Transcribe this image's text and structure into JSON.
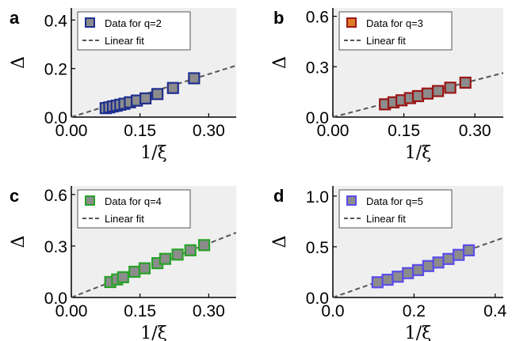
{
  "colors": {
    "background": "#ffffff",
    "plot_bg": "#efefef",
    "marker_face": "#8c8c8c",
    "fit_line": "#555555",
    "edge_q2": "#1f2f8f",
    "edge_q3": "#9b1515",
    "edge_q4": "#28a228",
    "edge_q5": "#5a4de8",
    "legend_q3_fill": "#e07b28"
  },
  "chart_data": [
    {
      "type": "scatter",
      "panel": "a",
      "xlabel": "1/ξ",
      "ylabel": "Δ",
      "xlim": [
        0,
        0.36
      ],
      "ylim": [
        0,
        0.45
      ],
      "xticks": [
        "0.00",
        "0.15",
        "0.30"
      ],
      "yticks": [
        "0.0",
        "0.2",
        "0.4"
      ],
      "xtick_values": [
        0,
        0.15,
        0.3
      ],
      "ytick_values": [
        0,
        0.2,
        0.4
      ],
      "grid": false,
      "legend_position": "top-left",
      "edge_color": "#1f2f8f",
      "legend_marker_fill": "#8c8c8c",
      "series": [
        {
          "name": "Data for q=2",
          "kind": "markers",
          "x": [
            0.075,
            0.083,
            0.091,
            0.099,
            0.107,
            0.116,
            0.128,
            0.143,
            0.162,
            0.188,
            0.222,
            0.268
          ],
          "y": [
            0.037,
            0.04,
            0.044,
            0.047,
            0.051,
            0.055,
            0.061,
            0.068,
            0.077,
            0.095,
            0.12,
            0.16
          ]
        },
        {
          "name": "Linear fit",
          "kind": "dashed-line",
          "slope": 0.59,
          "intercept": 0,
          "x_range": [
            0,
            0.36
          ]
        }
      ]
    },
    {
      "type": "scatter",
      "panel": "b",
      "xlabel": "1/ξ",
      "ylabel": "Δ",
      "xlim": [
        0,
        0.36
      ],
      "ylim": [
        0,
        0.65
      ],
      "xticks": [
        "0.00",
        "0.15",
        "0.30"
      ],
      "yticks": [
        "0.0",
        "0.3",
        "0.6"
      ],
      "xtick_values": [
        0,
        0.15,
        0.3
      ],
      "ytick_values": [
        0,
        0.3,
        0.6
      ],
      "grid": false,
      "legend_position": "top-left",
      "edge_color": "#9b1515",
      "legend_marker_fill": "#e07b28",
      "series": [
        {
          "name": "Data for q=3",
          "kind": "markers",
          "x": [
            0.11,
            0.128,
            0.145,
            0.163,
            0.18,
            0.2,
            0.222,
            0.248,
            0.28
          ],
          "y": [
            0.076,
            0.088,
            0.1,
            0.113,
            0.125,
            0.14,
            0.155,
            0.175,
            0.205
          ]
        },
        {
          "name": "Linear fit",
          "kind": "dashed-line",
          "slope": 0.73,
          "intercept": 0,
          "x_range": [
            0,
            0.36
          ]
        }
      ]
    },
    {
      "type": "scatter",
      "panel": "c",
      "xlabel": "1/ξ",
      "ylabel": "Δ",
      "xlim": [
        0,
        0.36
      ],
      "ylim": [
        0,
        0.65
      ],
      "xticks": [
        "0.00",
        "0.15",
        "0.30"
      ],
      "yticks": [
        "0.0",
        "0.3",
        "0.6"
      ],
      "xtick_values": [
        0,
        0.15,
        0.3
      ],
      "ytick_values": [
        0,
        0.3,
        0.6
      ],
      "grid": false,
      "legend_position": "top-left",
      "edge_color": "#28a228",
      "legend_marker_fill": "#8c8c8c",
      "series": [
        {
          "name": "Data for q=4",
          "kind": "markers",
          "x": [
            0.085,
            0.1,
            0.113,
            0.138,
            0.16,
            0.188,
            0.205,
            0.232,
            0.26,
            0.29
          ],
          "y": [
            0.09,
            0.105,
            0.118,
            0.15,
            0.17,
            0.2,
            0.225,
            0.25,
            0.275,
            0.305
          ]
        },
        {
          "name": "Linear fit",
          "kind": "dashed-line",
          "slope": 1.05,
          "intercept": 0,
          "x_range": [
            0,
            0.36
          ]
        }
      ]
    },
    {
      "type": "scatter",
      "panel": "d",
      "xlabel": "1/ξ",
      "ylabel": "Δ",
      "xlim": [
        0,
        0.42
      ],
      "ylim": [
        0,
        1.1
      ],
      "xticks": [
        "0.0",
        "0.2",
        "0.4"
      ],
      "yticks": [
        "0.0",
        "0.5",
        "1.0"
      ],
      "xtick_values": [
        0,
        0.2,
        0.4
      ],
      "ytick_values": [
        0,
        0.5,
        1.0
      ],
      "grid": false,
      "legend_position": "top-left",
      "edge_color": "#5a4de8",
      "legend_marker_fill": "#8c8c8c",
      "series": [
        {
          "name": "Data for q=5",
          "kind": "markers",
          "x": [
            0.11,
            0.135,
            0.16,
            0.185,
            0.21,
            0.235,
            0.26,
            0.285,
            0.31,
            0.335
          ],
          "y": [
            0.15,
            0.175,
            0.205,
            0.24,
            0.27,
            0.31,
            0.345,
            0.38,
            0.42,
            0.465
          ]
        },
        {
          "name": "Linear fit",
          "kind": "dashed-line",
          "slope": 1.4,
          "intercept": 0,
          "x_range": [
            0,
            0.42
          ]
        }
      ]
    }
  ]
}
